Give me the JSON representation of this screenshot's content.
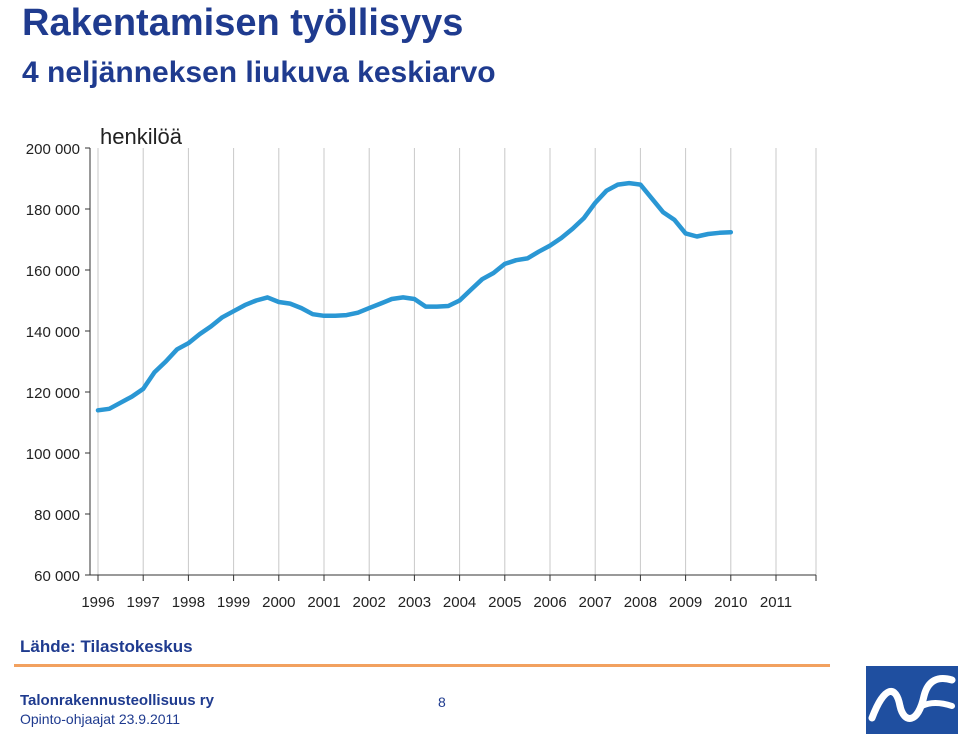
{
  "title": "Rakentamisen työllisyys",
  "subtitle": "4 neljänneksen liukuva keskiarvo",
  "chart_data": {
    "type": "line",
    "unit_label": "henkilöä",
    "ylim": [
      60000,
      200000
    ],
    "y_ticks": [
      60000,
      80000,
      100000,
      120000,
      140000,
      160000,
      180000,
      200000
    ],
    "y_tick_labels": [
      "60 000",
      "80 000",
      "100 000",
      "120 000",
      "140 000",
      "160 000",
      "180 000",
      "200 000"
    ],
    "x_tick_labels": [
      "1996",
      "1997",
      "1998",
      "1999",
      "2000",
      "2001",
      "2002",
      "2003",
      "2004",
      "2005",
      "2006",
      "2007",
      "2008",
      "2009",
      "2010",
      "2011"
    ],
    "grid": "vertical",
    "color": "#2a97d4",
    "series": [
      {
        "x": [
          1996.0,
          1996.25,
          1996.5,
          1996.75,
          1997.0,
          1997.25,
          1997.5,
          1997.75,
          1998.0,
          1998.25,
          1998.5,
          1998.75,
          1999.0,
          1999.25,
          1999.5,
          1999.75,
          2000.0,
          2000.25,
          2000.5,
          2000.75,
          2001.0,
          2001.25,
          2001.5,
          2001.75,
          2002.0,
          2002.25,
          2002.5,
          2002.75,
          2003.0,
          2003.25,
          2003.5,
          2003.75,
          2004.0,
          2004.25,
          2004.5,
          2004.75,
          2005.0,
          2005.25,
          2005.5,
          2005.75,
          2006.0,
          2006.25,
          2006.5,
          2006.75,
          2007.0,
          2007.25,
          2007.5,
          2007.75,
          2008.0,
          2008.25,
          2008.5,
          2008.75,
          2009.0,
          2009.25,
          2009.5,
          2009.75,
          2010.0,
          2010.25,
          2010.5,
          2010.75,
          2011.0
        ],
        "y": [
          114000,
          114500,
          116500,
          118500,
          121000,
          126500,
          130000,
          134000,
          136000,
          139000,
          141500,
          144500,
          146500,
          148500,
          150000,
          151000,
          149500,
          149000,
          147500,
          145500,
          145000,
          145000,
          145200,
          146000,
          147500,
          149000,
          150500,
          151000,
          150500,
          148000,
          148000,
          148200,
          150000,
          153500,
          157000,
          159000,
          162000,
          163200,
          163800,
          166000,
          168000,
          170500,
          173500,
          177000,
          182000,
          186000,
          188000,
          188500,
          188000,
          183500,
          179000,
          176500,
          172000,
          171000,
          171800,
          172200,
          172400,
          null,
          null,
          null,
          null
        ]
      }
    ]
  },
  "source": "Lähde: Tilastokeskus",
  "footer": {
    "org": "Talonrakennusteollisuus ry",
    "sub": "Opinto-ohjaajat 23.9.2011",
    "page": "8"
  },
  "logo_icon": "rt-logo-icon"
}
